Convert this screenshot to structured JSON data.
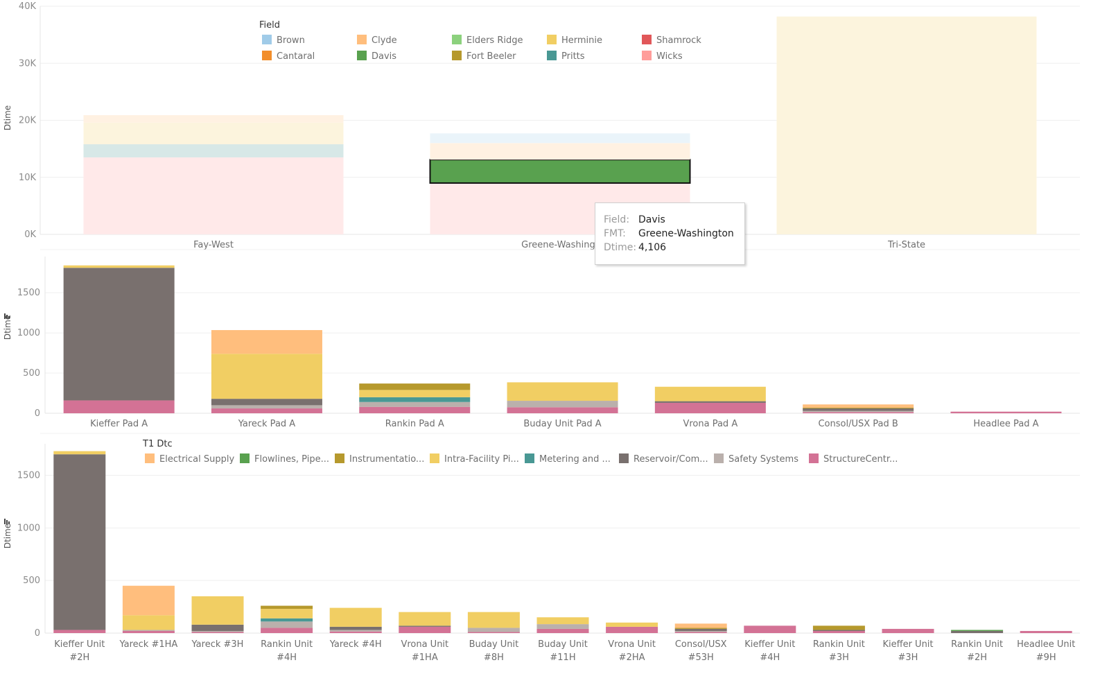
{
  "colors": {
    "field": {
      "Brown": "#a0cbe8",
      "Clyde": "#ffbe7d",
      "Elders Ridge": "#8cd17d",
      "Herminie": "#f1ce63",
      "Shamrock": "#e15759",
      "Cantaral": "#f28e2b",
      "Davis": "#59a14f",
      "Fort Beeler": "#b6992d",
      "Pritts": "#499894",
      "Wicks": "#ff9d9a"
    },
    "dtc": {
      "Electrical Supply": "#ffbe7d",
      "Flowlines, Pipe...": "#59a14f",
      "Instrumentatio...": "#b6992d",
      "Intra-Facility Pi...": "#f1ce63",
      "Metering and ...": "#499894",
      "Reservoir/Com...": "#79706e",
      "Safety Systems": "#bab0ac",
      "StructureCentr...": "#d37295"
    }
  },
  "chart_data": [
    {
      "type": "bar",
      "stacked": true,
      "ylabel": "Dtime",
      "ylim": [
        0,
        40000
      ],
      "yticks": [
        "0K",
        "10K",
        "20K",
        "30K",
        "40K"
      ],
      "grid": true,
      "legend": {
        "title": "Field",
        "position": "top-left",
        "entries": [
          "Brown",
          "Clyde",
          "Elders Ridge",
          "Herminie",
          "Shamrock",
          "Cantaral",
          "Davis",
          "Fort Beeler",
          "Pritts",
          "Wicks"
        ]
      },
      "categories": [
        "Fay-West",
        "Greene-Washington",
        "Tri-State"
      ],
      "category_labels": [
        "Fay-West",
        "Greene-Washingt",
        "Tri-State"
      ],
      "series": [
        {
          "name": "Wicks",
          "values": [
            13500,
            9000,
            0
          ],
          "faded": true
        },
        {
          "name": "Davis",
          "values": [
            0,
            4106,
            0
          ],
          "highlight": true
        },
        {
          "name": "Clyde",
          "values": [
            0,
            2900,
            0
          ],
          "faded": true
        },
        {
          "name": "Pritts",
          "values": [
            2300,
            0,
            0
          ],
          "faded": true
        },
        {
          "name": "Herminie",
          "values": [
            3800,
            0,
            38200
          ],
          "faded": true
        },
        {
          "name": "Brown",
          "values": [
            0,
            1700,
            0
          ],
          "faded": true
        },
        {
          "name": "Clyde",
          "values": [
            1300,
            0,
            0
          ],
          "faded": true
        }
      ]
    },
    {
      "type": "bar",
      "stacked": true,
      "ylabel": "Dtime",
      "ylim": [
        0,
        1950
      ],
      "yticks": [
        "0",
        "500",
        "1000",
        "1500"
      ],
      "grid": true,
      "categories": [
        "Kieffer Pad A",
        "Yareck Pad A",
        "Rankin Pad A",
        "Buday Unit Pad A",
        "Vrona Pad A",
        "Consol/USX Pad B",
        "Headlee Pad A"
      ],
      "series": [
        {
          "name": "StructureCentr...",
          "values": [
            160,
            60,
            80,
            75,
            130,
            15,
            20
          ]
        },
        {
          "name": "Safety Systems",
          "values": [
            0,
            40,
            60,
            80,
            0,
            15,
            0
          ]
        },
        {
          "name": "Reservoir/Com...",
          "values": [
            1650,
            80,
            0,
            0,
            20,
            30,
            0
          ]
        },
        {
          "name": "Metering and ...",
          "values": [
            0,
            0,
            60,
            0,
            0,
            0,
            0
          ]
        },
        {
          "name": "Intra-Facility Pi...",
          "values": [
            30,
            560,
            90,
            230,
            180,
            0,
            0
          ]
        },
        {
          "name": "Instrumentatio...",
          "values": [
            0,
            0,
            80,
            0,
            0,
            10,
            0
          ]
        },
        {
          "name": "Electrical Supply",
          "values": [
            0,
            295,
            0,
            0,
            0,
            40,
            0
          ]
        }
      ]
    },
    {
      "type": "bar",
      "stacked": true,
      "ylabel": "Dtime",
      "ylim": [
        0,
        1800
      ],
      "yticks": [
        "0",
        "500",
        "1000",
        "1500"
      ],
      "grid": true,
      "legend": {
        "title": "T1 Dtc",
        "position": "top",
        "entries": [
          "Electrical Supply",
          "Flowlines, Pipe...",
          "Instrumentatio...",
          "Intra-Facility Pi...",
          "Metering and ...",
          "Reservoir/Com...",
          "Safety Systems",
          "StructureCentr..."
        ]
      },
      "categories": [
        "Kieffer Unit #2H",
        "Yareck #1HA",
        "Yareck #3H",
        "Rankin Unit #4H",
        "Yareck #4H",
        "Vrona Unit #1HA",
        "Buday Unit #8H",
        "Buday Unit #11H",
        "Vrona Unit #2HA",
        "Consol/USX #53H",
        "Kieffer Unit #4H",
        "Rankin Unit #3H",
        "Kieffer Unit #3H",
        "Rankin Unit #2H",
        "Headlee Unit #9H"
      ],
      "category_lines": [
        [
          "Kieffer Unit",
          "#2H"
        ],
        [
          "Yareck #1HA",
          ""
        ],
        [
          "Yareck #3H",
          ""
        ],
        [
          "Rankin Unit",
          "#4H"
        ],
        [
          "Yareck #4H",
          ""
        ],
        [
          "Vrona Unit",
          "#1HA"
        ],
        [
          "Buday Unit",
          "#8H"
        ],
        [
          "Buday Unit",
          "#11H"
        ],
        [
          "Vrona Unit",
          "#2HA"
        ],
        [
          "Consol/USX",
          "#53H"
        ],
        [
          "Kieffer Unit",
          "#4H"
        ],
        [
          "Rankin Unit",
          "#3H"
        ],
        [
          "Kieffer Unit",
          "#3H"
        ],
        [
          "Rankin Unit",
          "#2H"
        ],
        [
          "Headlee Unit",
          "#9H"
        ]
      ],
      "series": [
        {
          "name": "StructureCentr...",
          "values": [
            30,
            20,
            10,
            50,
            15,
            60,
            10,
            40,
            60,
            10,
            70,
            20,
            40,
            0,
            20
          ]
        },
        {
          "name": "Safety Systems",
          "values": [
            0,
            10,
            10,
            60,
            15,
            0,
            40,
            45,
            0,
            10,
            0,
            0,
            0,
            0,
            0
          ]
        },
        {
          "name": "Reservoir/Com...",
          "values": [
            1670,
            0,
            60,
            0,
            30,
            10,
            0,
            0,
            0,
            20,
            0,
            10,
            0,
            20,
            0
          ]
        },
        {
          "name": "Metering and ...",
          "values": [
            0,
            0,
            0,
            30,
            0,
            0,
            0,
            0,
            0,
            0,
            0,
            0,
            0,
            0,
            0
          ]
        },
        {
          "name": "Flowlines, Pipe...",
          "values": [
            0,
            0,
            0,
            0,
            0,
            0,
            0,
            0,
            0,
            0,
            0,
            0,
            0,
            10,
            0
          ]
        },
        {
          "name": "Intra-Facility Pi...",
          "values": [
            30,
            140,
            270,
            90,
            180,
            130,
            150,
            65,
            40,
            0,
            0,
            0,
            0,
            0,
            0
          ]
        },
        {
          "name": "Instrumentatio...",
          "values": [
            0,
            0,
            0,
            30,
            0,
            0,
            0,
            0,
            0,
            10,
            0,
            40,
            0,
            0,
            0
          ]
        },
        {
          "name": "Electrical Supply",
          "values": [
            0,
            280,
            0,
            0,
            0,
            0,
            0,
            0,
            0,
            40,
            0,
            0,
            0,
            0,
            0
          ]
        }
      ]
    }
  ],
  "tooltip": {
    "rows": [
      {
        "key": "Field:",
        "value": "Davis"
      },
      {
        "key": "FMT:",
        "value": "Greene-Washington"
      },
      {
        "key": "Dtime:",
        "value": "4,106"
      }
    ]
  }
}
